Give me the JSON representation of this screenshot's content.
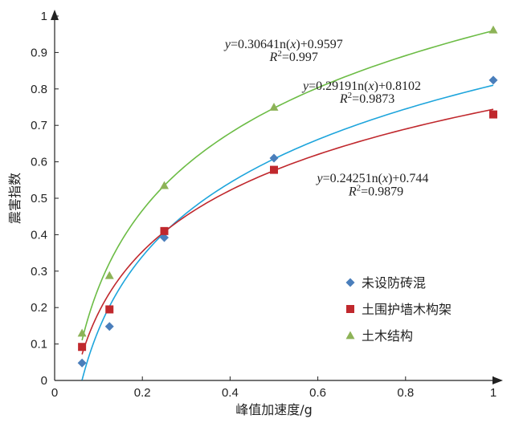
{
  "chart_data": {
    "type": "scatter",
    "xlabel": "峰值加速度/g",
    "ylabel": "震害指数",
    "xlim": [
      0,
      1
    ],
    "ylim": [
      0,
      1
    ],
    "x_ticks": [
      "0",
      "0.2",
      "0.4",
      "0.6",
      "0.8",
      "1"
    ],
    "y_ticks": [
      "0",
      "0.1",
      "0.2",
      "0.3",
      "0.4",
      "0.5",
      "0.6",
      "0.7",
      "0.8",
      "0.9",
      "1"
    ],
    "grid": false,
    "legend_position": "bottom-right",
    "series": [
      {
        "name": "未设防砖混",
        "marker": "diamond",
        "color": "#4a7ebb",
        "fit_color": "#1ea5dc",
        "x": [
          0.0625,
          0.125,
          0.25,
          0.5,
          1.0
        ],
        "y": [
          0.048,
          0.148,
          0.392,
          0.61,
          0.824
        ],
        "fit": {
          "a": 0.29191,
          "b": 0.8102
        },
        "equation": {
          "prefix": "y",
          "body": "=0.29191n(",
          "var": "x",
          "suffix": ")+0.8102"
        },
        "r2": {
          "label": "R",
          "sup": "2",
          "value": "=0.9873"
        }
      },
      {
        "name": "土围护墙木构架",
        "marker": "square",
        "color": "#c0282d",
        "fit_color": "#c0282d",
        "x": [
          0.0625,
          0.125,
          0.25,
          0.5,
          1.0
        ],
        "y": [
          0.092,
          0.195,
          0.41,
          0.578,
          0.73
        ],
        "fit": {
          "a": 0.24251,
          "b": 0.744
        },
        "equation": {
          "prefix": "y",
          "body": "=0.24251n(",
          "var": "x",
          "suffix": ")+0.744"
        },
        "r2": {
          "label": "R",
          "sup": "2",
          "value": "=0.9879"
        }
      },
      {
        "name": "土木结构",
        "marker": "triangle",
        "color": "#8db357",
        "fit_color": "#6cbc45",
        "x": [
          0.0625,
          0.125,
          0.25,
          0.5,
          1.0
        ],
        "y": [
          0.13,
          0.288,
          0.535,
          0.75,
          0.962
        ],
        "fit": {
          "a": 0.30641,
          "b": 0.9597
        },
        "equation": {
          "prefix": "y",
          "body": "=0.30641n(",
          "var": "x",
          "suffix": ")+0.9597"
        },
        "r2": {
          "label": "R",
          "sup": "2",
          "value": "=0.997"
        }
      }
    ]
  }
}
